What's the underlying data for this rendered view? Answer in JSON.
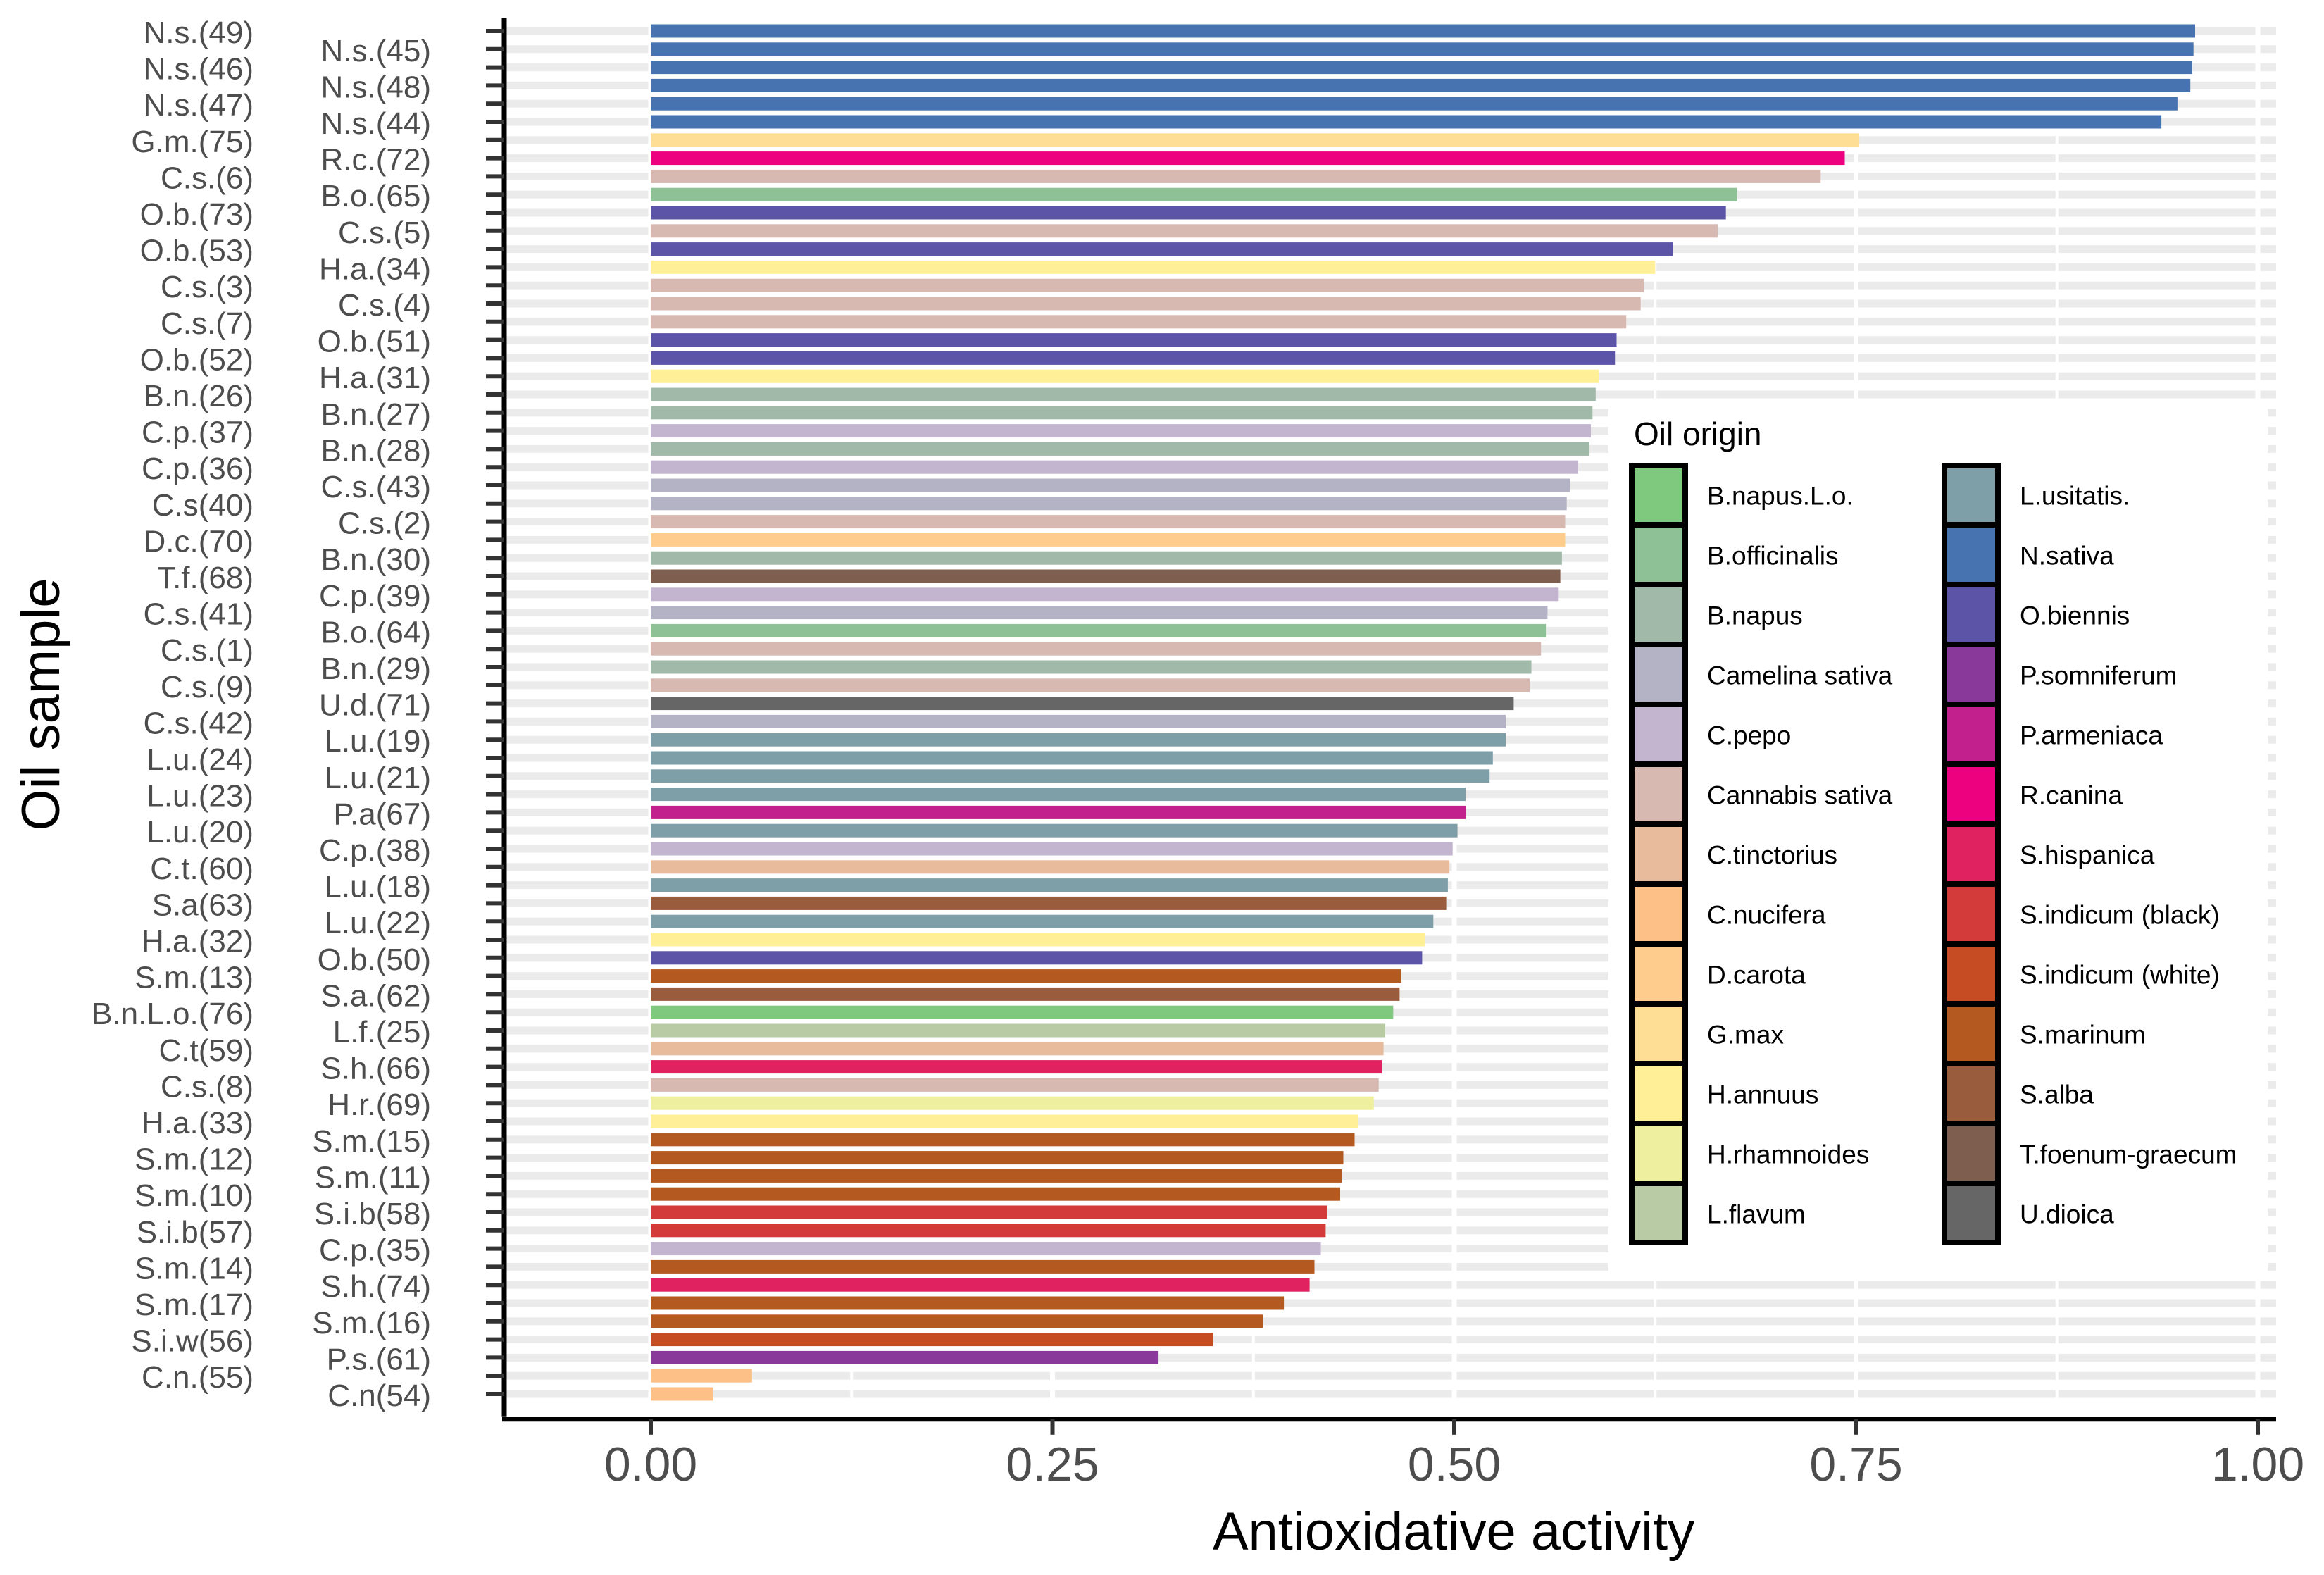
{
  "chart_data": {
    "type": "bar",
    "orientation": "horizontal",
    "title": "",
    "xlabel": "Antioxidative  activity",
    "ylabel": "Oil sample",
    "xlim": [
      -0.09,
      1.03
    ],
    "xticks": [
      0,
      0.25,
      0.5,
      0.75,
      1
    ],
    "xtick_labels": [
      "0.00",
      "0.25",
      "0.50",
      "0.75",
      "1.00"
    ],
    "grid": true,
    "legend_title": "Oil origin",
    "legend_position": "right",
    "origins": [
      {
        "name": "B.napus.L.o.",
        "color": "#7fc97f"
      },
      {
        "name": "B.officinalis",
        "color": "#8fc196"
      },
      {
        "name": "B.napus",
        "color": "#a0b9a8"
      },
      {
        "name": "Camelina sativa",
        "color": "#b4b3c6"
      },
      {
        "name": "C.pepo",
        "color": "#c3b4d0"
      },
      {
        "name": "Cannabis sativa",
        "color": "#d7b9b2"
      },
      {
        "name": "C.tinctorius",
        "color": "#e9bb9d"
      },
      {
        "name": "C.nucifera",
        "color": "#fdc086"
      },
      {
        "name": "D.carota",
        "color": "#fecd8d"
      },
      {
        "name": "G.max",
        "color": "#fedd94"
      },
      {
        "name": "H.annuus",
        "color": "#fff097"
      },
      {
        "name": "H.rhamnoides",
        "color": "#eef0a0"
      },
      {
        "name": "L.flavum",
        "color": "#b8cba4"
      },
      {
        "name": "L.usitatis.",
        "color": "#7f9fa8"
      },
      {
        "name": "N.sativa",
        "color": "#4774b0"
      },
      {
        "name": "O.biennis",
        "color": "#5c54a6"
      },
      {
        "name": "P.somniferum",
        "color": "#89399a"
      },
      {
        "name": "P.armeniaca",
        "color": "#c2208d"
      },
      {
        "name": "R.canina",
        "color": "#ed017f"
      },
      {
        "name": "S.hispanica",
        "color": "#e12261"
      },
      {
        "name": "S.indicum (black)",
        "color": "#d33b3b"
      },
      {
        "name": "S.indicum (white)",
        "color": "#c64d23"
      },
      {
        "name": "S.marinum",
        "color": "#b4591f"
      },
      {
        "name": "S.alba",
        "color": "#995c3c"
      },
      {
        "name": "T.foenum-graecum",
        "color": "#7e5e4e"
      },
      {
        "name": "U.dioica",
        "color": "#666666"
      }
    ],
    "bars": [
      {
        "label": "N.s.(49)",
        "value": 0.961,
        "origin": "N.sativa"
      },
      {
        "label": "N.s.(45)",
        "value": 0.96,
        "origin": "N.sativa"
      },
      {
        "label": "N.s.(46)",
        "value": 0.959,
        "origin": "N.sativa"
      },
      {
        "label": "N.s.(48)",
        "value": 0.958,
        "origin": "N.sativa"
      },
      {
        "label": "N.s.(47)",
        "value": 0.95,
        "origin": "N.sativa"
      },
      {
        "label": "N.s.(44)",
        "value": 0.94,
        "origin": "N.sativa"
      },
      {
        "label": "G.m.(75)",
        "value": 0.752,
        "origin": "G.max"
      },
      {
        "label": "R.c.(72)",
        "value": 0.743,
        "origin": "R.canina"
      },
      {
        "label": "C.s.(6)",
        "value": 0.728,
        "origin": "Cannabis sativa"
      },
      {
        "label": "B.o.(65)",
        "value": 0.676,
        "origin": "B.officinalis"
      },
      {
        "label": "O.b.(73)",
        "value": 0.669,
        "origin": "O.biennis"
      },
      {
        "label": "C.s.(5)",
        "value": 0.664,
        "origin": "Cannabis sativa"
      },
      {
        "label": "O.b.(53)",
        "value": 0.636,
        "origin": "O.biennis"
      },
      {
        "label": "H.a.(34)",
        "value": 0.625,
        "origin": "H.annuus"
      },
      {
        "label": "C.s.(3)",
        "value": 0.618,
        "origin": "Cannabis sativa"
      },
      {
        "label": "C.s.(4)",
        "value": 0.616,
        "origin": "Cannabis sativa"
      },
      {
        "label": "C.s.(7)",
        "value": 0.607,
        "origin": "Cannabis sativa"
      },
      {
        "label": "O.b.(51)",
        "value": 0.601,
        "origin": "O.biennis"
      },
      {
        "label": "O.b.(52)",
        "value": 0.6,
        "origin": "O.biennis"
      },
      {
        "label": "H.a.(31)",
        "value": 0.59,
        "origin": "H.annuus"
      },
      {
        "label": "B.n.(26)",
        "value": 0.588,
        "origin": "B.napus"
      },
      {
        "label": "B.n.(27)",
        "value": 0.586,
        "origin": "B.napus"
      },
      {
        "label": "C.p.(37)",
        "value": 0.585,
        "origin": "C.pepo"
      },
      {
        "label": "B.n.(28)",
        "value": 0.584,
        "origin": "B.napus"
      },
      {
        "label": "C.p.(36)",
        "value": 0.577,
        "origin": "C.pepo"
      },
      {
        "label": "C.s.(43)",
        "value": 0.572,
        "origin": "Camelina sativa"
      },
      {
        "label": "C.s(40)",
        "value": 0.57,
        "origin": "Camelina sativa"
      },
      {
        "label": "C.s.(2)",
        "value": 0.569,
        "origin": "Cannabis sativa"
      },
      {
        "label": "D.c.(70)",
        "value": 0.569,
        "origin": "D.carota"
      },
      {
        "label": "B.n.(30)",
        "value": 0.567,
        "origin": "B.napus"
      },
      {
        "label": "T.f.(68)",
        "value": 0.566,
        "origin": "T.foenum-graecum"
      },
      {
        "label": "C.p.(39)",
        "value": 0.565,
        "origin": "C.pepo"
      },
      {
        "label": "C.s.(41)",
        "value": 0.558,
        "origin": "Camelina sativa"
      },
      {
        "label": "B.o.(64)",
        "value": 0.557,
        "origin": "B.officinalis"
      },
      {
        "label": "C.s.(1)",
        "value": 0.554,
        "origin": "Cannabis sativa"
      },
      {
        "label": "B.n.(29)",
        "value": 0.548,
        "origin": "B.napus"
      },
      {
        "label": "C.s.(9)",
        "value": 0.547,
        "origin": "Cannabis sativa"
      },
      {
        "label": "U.d.(71)",
        "value": 0.537,
        "origin": "U.dioica"
      },
      {
        "label": "C.s.(42)",
        "value": 0.532,
        "origin": "Camelina sativa"
      },
      {
        "label": "L.u.(19)",
        "value": 0.532,
        "origin": "L.usitatis."
      },
      {
        "label": "L.u.(24)",
        "value": 0.524,
        "origin": "L.usitatis."
      },
      {
        "label": "L.u.(21)",
        "value": 0.522,
        "origin": "L.usitatis."
      },
      {
        "label": "L.u.(23)",
        "value": 0.507,
        "origin": "L.usitatis."
      },
      {
        "label": "P.a(67)",
        "value": 0.507,
        "origin": "P.armeniaca"
      },
      {
        "label": "L.u.(20)",
        "value": 0.502,
        "origin": "L.usitatis."
      },
      {
        "label": "C.p.(38)",
        "value": 0.499,
        "origin": "C.pepo"
      },
      {
        "label": "C.t.(60)",
        "value": 0.497,
        "origin": "C.tinctorius"
      },
      {
        "label": "L.u.(18)",
        "value": 0.496,
        "origin": "L.usitatis."
      },
      {
        "label": "S.a(63)",
        "value": 0.495,
        "origin": "S.alba"
      },
      {
        "label": "L.u.(22)",
        "value": 0.487,
        "origin": "L.usitatis."
      },
      {
        "label": "H.a.(32)",
        "value": 0.482,
        "origin": "H.annuus"
      },
      {
        "label": "O.b.(50)",
        "value": 0.48,
        "origin": "O.biennis"
      },
      {
        "label": "S.m.(13)",
        "value": 0.467,
        "origin": "S.marinum"
      },
      {
        "label": "S.a.(62)",
        "value": 0.466,
        "origin": "S.alba"
      },
      {
        "label": "B.n.L.o.(76)",
        "value": 0.462,
        "origin": "B.napus.L.o."
      },
      {
        "label": "L.f.(25)",
        "value": 0.457,
        "origin": "L.flavum"
      },
      {
        "label": "C.t(59)",
        "value": 0.456,
        "origin": "C.tinctorius"
      },
      {
        "label": "S.h.(66)",
        "value": 0.455,
        "origin": "S.hispanica"
      },
      {
        "label": "C.s.(8)",
        "value": 0.453,
        "origin": "Cannabis sativa"
      },
      {
        "label": "H.r.(69)",
        "value": 0.45,
        "origin": "H.rhamnoides"
      },
      {
        "label": "H.a.(33)",
        "value": 0.44,
        "origin": "H.annuus"
      },
      {
        "label": "S.m.(15)",
        "value": 0.438,
        "origin": "S.marinum"
      },
      {
        "label": "S.m.(12)",
        "value": 0.431,
        "origin": "S.marinum"
      },
      {
        "label": "S.m.(11)",
        "value": 0.43,
        "origin": "S.marinum"
      },
      {
        "label": "S.m.(10)",
        "value": 0.429,
        "origin": "S.marinum"
      },
      {
        "label": "S.i.b(58)",
        "value": 0.421,
        "origin": "S.indicum (black)"
      },
      {
        "label": "S.i.b(57)",
        "value": 0.42,
        "origin": "S.indicum (black)"
      },
      {
        "label": "C.p.(35)",
        "value": 0.417,
        "origin": "C.pepo"
      },
      {
        "label": "S.m.(14)",
        "value": 0.413,
        "origin": "S.marinum"
      },
      {
        "label": "S.h.(74)",
        "value": 0.41,
        "origin": "S.hispanica"
      },
      {
        "label": "S.m.(17)",
        "value": 0.394,
        "origin": "S.marinum"
      },
      {
        "label": "S.m.(16)",
        "value": 0.381,
        "origin": "S.marinum"
      },
      {
        "label": "S.i.w(56)",
        "value": 0.35,
        "origin": "S.indicum (white)"
      },
      {
        "label": "P.s.(61)",
        "value": 0.316,
        "origin": "P.somniferum"
      },
      {
        "label": "C.n.(55)",
        "value": 0.063,
        "origin": "C.nucifera"
      },
      {
        "label": "C.n(54)",
        "value": 0.039,
        "origin": "C.nucifera"
      }
    ]
  }
}
